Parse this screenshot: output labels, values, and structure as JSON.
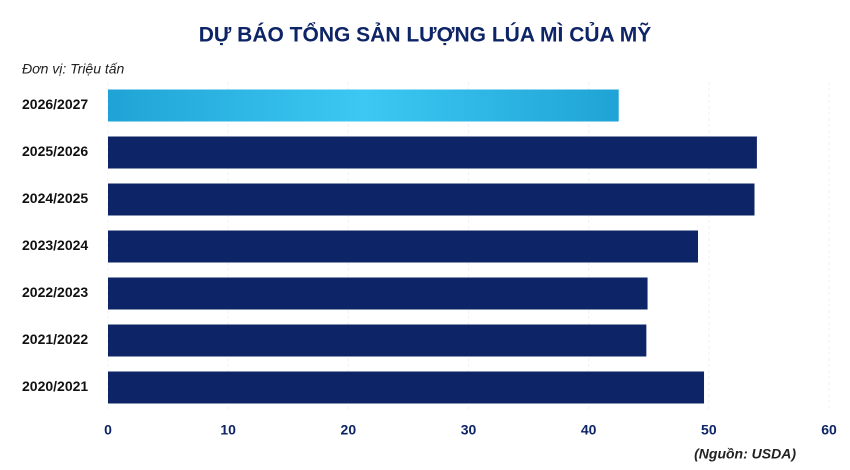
{
  "chart_data": {
    "type": "bar",
    "orientation": "horizontal",
    "title": "DỰ BÁO TỔNG SẢN LƯỢNG LÚA MÌ CỦA MỸ",
    "subtitle": "Đơn vị: Triệu tấn",
    "source": "(Nguồn: USDA)",
    "categories": [
      "2026/2027",
      "2025/2026",
      "2024/2025",
      "2023/2024",
      "2022/2023",
      "2021/2022",
      "2020/2021"
    ],
    "values": [
      42.5,
      54.0,
      53.8,
      49.1,
      44.9,
      44.8,
      49.6
    ],
    "colors": [
      "#2bb8ea",
      "#0d2466",
      "#0d2466",
      "#0d2466",
      "#0d2466",
      "#0d2466",
      "#0d2466"
    ],
    "xlim": [
      0,
      60
    ],
    "xticks": [
      0,
      10,
      20,
      30,
      40,
      50,
      60
    ],
    "grid": true
  }
}
